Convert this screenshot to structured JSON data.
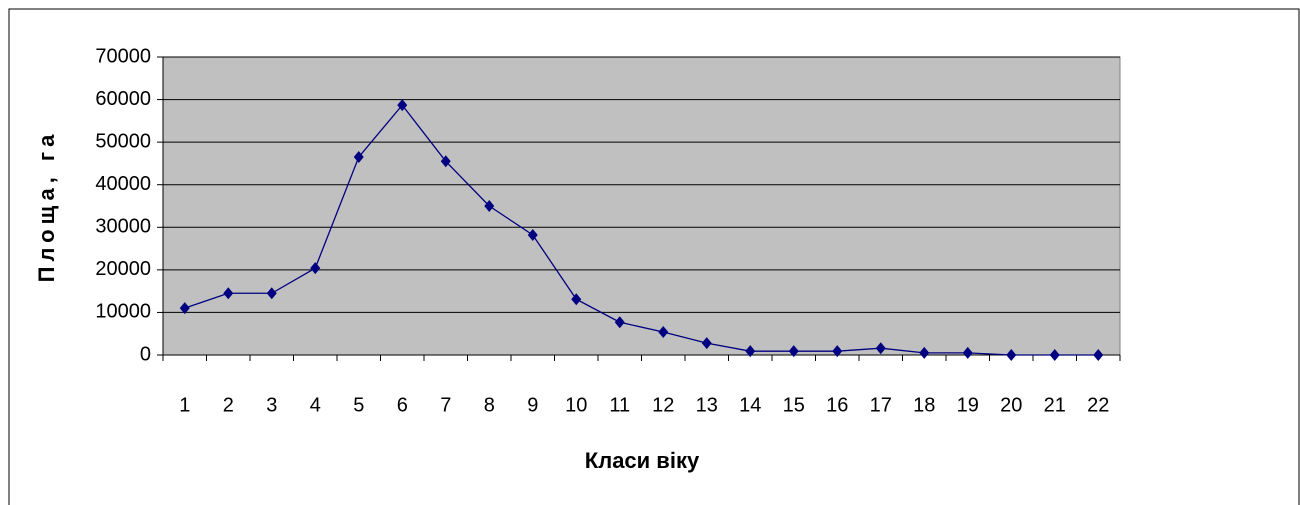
{
  "chart_data": {
    "type": "line",
    "categories": [
      "1",
      "2",
      "3",
      "4",
      "5",
      "6",
      "7",
      "8",
      "9",
      "10",
      "11",
      "12",
      "13",
      "14",
      "15",
      "16",
      "17",
      "18",
      "19",
      "20",
      "21",
      "22"
    ],
    "series": [
      {
        "color": "#000080",
        "values": [
          11000,
          14500,
          14500,
          20400,
          46500,
          58700,
          45500,
          35000,
          28200,
          13100,
          7700,
          5400,
          2800,
          900,
          900,
          900,
          1600,
          500,
          500,
          0,
          0,
          0
        ]
      }
    ],
    "xlabel": "Класи віку",
    "ylabel": "Площа, га",
    "ylim": [
      0,
      70000
    ],
    "yticks": [
      0,
      10000,
      20000,
      30000,
      40000,
      50000,
      60000,
      70000
    ],
    "grid": true
  }
}
